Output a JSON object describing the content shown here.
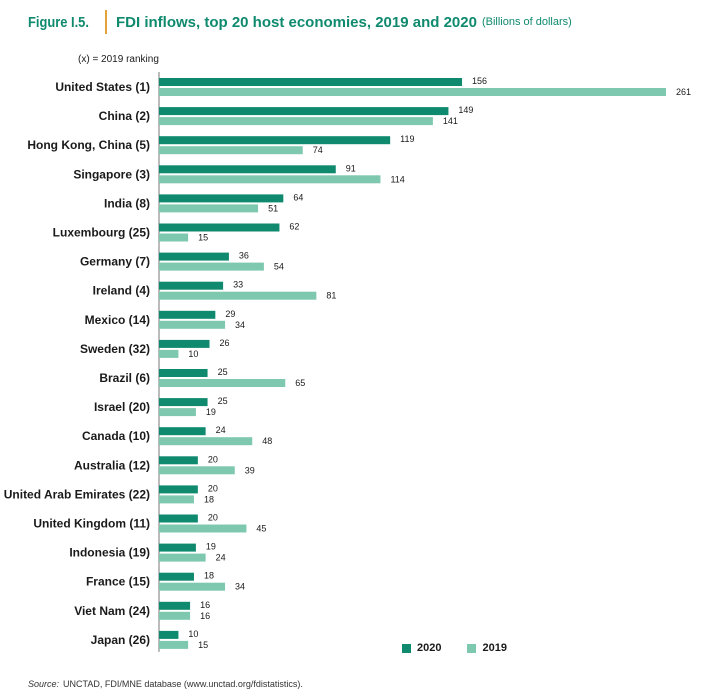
{
  "figure": {
    "number": "Figure I.5.",
    "title": "FDI inflows, top 20 host economies, 2019 and 2020",
    "subtitle": "(Billions of dollars)",
    "ranking_note": "(x) = 2019 ranking"
  },
  "colors": {
    "y2020": "#0f8a6e",
    "y2019": "#7fc8b0"
  },
  "legend": {
    "item_2020": "2020",
    "item_2019": "2019"
  },
  "source": {
    "label": "Source:",
    "text": "UNCTAD, FDI/MNE database (www.unctad.org/fdistatistics)."
  },
  "chart_data": {
    "type": "bar",
    "orientation": "horizontal",
    "title": "FDI inflows, top 20 host economies, 2019 and 2020",
    "subtitle": "(Billions of dollars)",
    "categories": [
      "United States (1)",
      "China (2)",
      "Hong Kong, China (5)",
      "Singapore (3)",
      "India (8)",
      "Luxembourg (25)",
      "Germany (7)",
      "Ireland (4)",
      "Mexico (14)",
      "Sweden (32)",
      "Brazil (6)",
      "Israel (20)",
      "Canada (10)",
      "Australia (12)",
      "United Arab Emirates (22)",
      "United Kingdom (11)",
      "Indonesia (19)",
      "France (15)",
      "Viet Nam (24)",
      "Japan (26)"
    ],
    "series": [
      {
        "name": "2020",
        "values": [
          156,
          149,
          119,
          91,
          64,
          62,
          36,
          33,
          29,
          26,
          25,
          25,
          24,
          20,
          20,
          20,
          19,
          18,
          16,
          10
        ]
      },
      {
        "name": "2019",
        "values": [
          261,
          141,
          74,
          114,
          51,
          15,
          54,
          81,
          34,
          10,
          65,
          19,
          48,
          39,
          18,
          45,
          24,
          34,
          16,
          15
        ]
      }
    ],
    "xlim": [
      0,
      261
    ],
    "grid": false,
    "legend_position": "bottom-right"
  }
}
